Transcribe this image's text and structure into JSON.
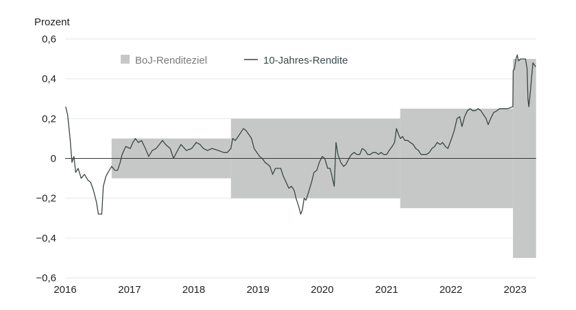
{
  "chart_data": {
    "type": "line",
    "ylabel": "Prozent",
    "ylim": [
      -0.6,
      0.6
    ],
    "yticks": [
      {
        "value": 0.6,
        "label": "0,6"
      },
      {
        "value": 0.4,
        "label": "0,4"
      },
      {
        "value": 0.2,
        "label": "0,2"
      },
      {
        "value": 0,
        "label": "0"
      },
      {
        "value": -0.2,
        "label": "−0,2"
      },
      {
        "value": -0.4,
        "label": "−0,4"
      },
      {
        "value": -0.6,
        "label": "−0,6"
      }
    ],
    "xlim": [
      "2016-01-01",
      "2023-05-01"
    ],
    "xticks": [
      {
        "value": "2016-01-01",
        "label": "2016"
      },
      {
        "value": "2017-01-01",
        "label": "2017"
      },
      {
        "value": "2018-01-01",
        "label": "2018"
      },
      {
        "value": "2019-01-01",
        "label": "2019"
      },
      {
        "value": "2020-01-01",
        "label": "2020"
      },
      {
        "value": "2021-01-01",
        "label": "2021"
      },
      {
        "value": "2022-01-01",
        "label": "2022"
      },
      {
        "value": "2023-01-01",
        "label": "2023"
      }
    ],
    "legend": {
      "position": "top-left",
      "band_label": "BoJ-Renditeziel",
      "line_label": "10-Jahres-Rendite"
    },
    "colors": {
      "band": "#c6c8c7",
      "line": "#37443f",
      "zero_line": "#333333",
      "grid": "#e6e6e6"
    },
    "band": [
      {
        "start": "2016-09-21",
        "end": "2018-07-31",
        "lower": -0.1,
        "upper": 0.1
      },
      {
        "start": "2018-07-31",
        "end": "2021-03-19",
        "lower": -0.2,
        "upper": 0.2
      },
      {
        "start": "2021-03-19",
        "end": "2022-12-20",
        "lower": -0.25,
        "upper": 0.25
      },
      {
        "start": "2022-12-20",
        "end": "2023-04-30",
        "lower": -0.5,
        "upper": 0.5
      }
    ],
    "series": [
      {
        "name": "10-Jahres-Rendite",
        "points": [
          [
            "2016-01-04",
            0.26
          ],
          [
            "2016-01-15",
            0.22
          ],
          [
            "2016-01-29",
            0.1
          ],
          [
            "2016-02-09",
            -0.02
          ],
          [
            "2016-02-20",
            0.01
          ],
          [
            "2016-03-01",
            -0.07
          ],
          [
            "2016-03-15",
            -0.05
          ],
          [
            "2016-04-01",
            -0.1
          ],
          [
            "2016-04-20",
            -0.08
          ],
          [
            "2016-05-10",
            -0.11
          ],
          [
            "2016-05-25",
            -0.12
          ],
          [
            "2016-06-10",
            -0.16
          ],
          [
            "2016-06-27",
            -0.22
          ],
          [
            "2016-07-08",
            -0.28
          ],
          [
            "2016-07-27",
            -0.28
          ],
          [
            "2016-08-05",
            -0.14
          ],
          [
            "2016-08-20",
            -0.09
          ],
          [
            "2016-09-01",
            -0.07
          ],
          [
            "2016-09-21",
            -0.04
          ],
          [
            "2016-10-10",
            -0.06
          ],
          [
            "2016-10-25",
            -0.06
          ],
          [
            "2016-11-09",
            -0.02
          ],
          [
            "2016-11-20",
            0.02
          ],
          [
            "2016-12-10",
            0.06
          ],
          [
            "2017-01-05",
            0.05
          ],
          [
            "2017-01-20",
            0.08
          ],
          [
            "2017-02-03",
            0.1
          ],
          [
            "2017-02-20",
            0.08
          ],
          [
            "2017-03-10",
            0.09
          ],
          [
            "2017-04-01",
            0.05
          ],
          [
            "2017-04-20",
            0.01
          ],
          [
            "2017-05-10",
            0.04
          ],
          [
            "2017-06-01",
            0.05
          ],
          [
            "2017-07-07",
            0.09
          ],
          [
            "2017-07-25",
            0.07
          ],
          [
            "2017-08-20",
            0.05
          ],
          [
            "2017-09-08",
            0.0
          ],
          [
            "2017-09-25",
            0.03
          ],
          [
            "2017-10-20",
            0.07
          ],
          [
            "2017-11-20",
            0.04
          ],
          [
            "2017-12-20",
            0.05
          ],
          [
            "2018-01-15",
            0.08
          ],
          [
            "2018-02-05",
            0.07
          ],
          [
            "2018-02-25",
            0.05
          ],
          [
            "2018-03-20",
            0.04
          ],
          [
            "2018-04-15",
            0.05
          ],
          [
            "2018-05-20",
            0.04
          ],
          [
            "2018-06-20",
            0.03
          ],
          [
            "2018-07-10",
            0.03
          ],
          [
            "2018-07-31",
            0.05
          ],
          [
            "2018-08-10",
            0.1
          ],
          [
            "2018-08-25",
            0.09
          ],
          [
            "2018-09-10",
            0.11
          ],
          [
            "2018-09-25",
            0.13
          ],
          [
            "2018-10-10",
            0.15
          ],
          [
            "2018-10-25",
            0.14
          ],
          [
            "2018-11-10",
            0.12
          ],
          [
            "2018-11-25",
            0.1
          ],
          [
            "2018-12-10",
            0.05
          ],
          [
            "2018-12-25",
            0.03
          ],
          [
            "2019-01-10",
            0.01
          ],
          [
            "2019-01-25",
            0.0
          ],
          [
            "2019-02-10",
            -0.02
          ],
          [
            "2019-02-25",
            -0.03
          ],
          [
            "2019-03-10",
            -0.04
          ],
          [
            "2019-03-25",
            -0.08
          ],
          [
            "2019-04-10",
            -0.05
          ],
          [
            "2019-04-25",
            -0.05
          ],
          [
            "2019-05-10",
            -0.05
          ],
          [
            "2019-05-25",
            -0.09
          ],
          [
            "2019-06-10",
            -0.12
          ],
          [
            "2019-06-25",
            -0.15
          ],
          [
            "2019-07-10",
            -0.14
          ],
          [
            "2019-07-25",
            -0.16
          ],
          [
            "2019-08-05",
            -0.2
          ],
          [
            "2019-08-20",
            -0.24
          ],
          [
            "2019-09-01",
            -0.28
          ],
          [
            "2019-09-10",
            -0.26
          ],
          [
            "2019-09-20",
            -0.2
          ],
          [
            "2019-10-01",
            -0.21
          ],
          [
            "2019-10-15",
            -0.17
          ],
          [
            "2019-11-01",
            -0.12
          ],
          [
            "2019-11-15",
            -0.07
          ],
          [
            "2019-12-01",
            -0.06
          ],
          [
            "2019-12-15",
            -0.02
          ],
          [
            "2020-01-01",
            0.01
          ],
          [
            "2020-01-15",
            0.0
          ],
          [
            "2020-02-01",
            -0.05
          ],
          [
            "2020-02-15",
            -0.05
          ],
          [
            "2020-03-09",
            -0.14
          ],
          [
            "2020-03-19",
            0.08
          ],
          [
            "2020-03-30",
            0.02
          ],
          [
            "2020-04-15",
            -0.02
          ],
          [
            "2020-05-01",
            -0.04
          ],
          [
            "2020-05-15",
            -0.03
          ],
          [
            "2020-06-01",
            0.0
          ],
          [
            "2020-06-15",
            0.02
          ],
          [
            "2020-07-01",
            0.03
          ],
          [
            "2020-07-15",
            0.02
          ],
          [
            "2020-08-01",
            0.02
          ],
          [
            "2020-08-15",
            0.05
          ],
          [
            "2020-09-01",
            0.04
          ],
          [
            "2020-09-15",
            0.02
          ],
          [
            "2020-10-01",
            0.02
          ],
          [
            "2020-10-15",
            0.03
          ],
          [
            "2020-11-01",
            0.03
          ],
          [
            "2020-11-15",
            0.02
          ],
          [
            "2020-12-01",
            0.03
          ],
          [
            "2020-12-15",
            0.02
          ],
          [
            "2021-01-01",
            0.02
          ],
          [
            "2021-01-15",
            0.04
          ],
          [
            "2021-02-01",
            0.06
          ],
          [
            "2021-02-15",
            0.08
          ],
          [
            "2021-02-26",
            0.15
          ],
          [
            "2021-03-10",
            0.12
          ],
          [
            "2021-03-20",
            0.1
          ],
          [
            "2021-04-01",
            0.11
          ],
          [
            "2021-04-15",
            0.09
          ],
          [
            "2021-05-01",
            0.09
          ],
          [
            "2021-05-15",
            0.08
          ],
          [
            "2021-06-01",
            0.07
          ],
          [
            "2021-06-15",
            0.05
          ],
          [
            "2021-07-01",
            0.04
          ],
          [
            "2021-07-15",
            0.02
          ],
          [
            "2021-08-01",
            0.02
          ],
          [
            "2021-08-15",
            0.02
          ],
          [
            "2021-09-01",
            0.03
          ],
          [
            "2021-09-15",
            0.05
          ],
          [
            "2021-10-01",
            0.06
          ],
          [
            "2021-10-15",
            0.08
          ],
          [
            "2021-11-01",
            0.07
          ],
          [
            "2021-11-15",
            0.08
          ],
          [
            "2021-12-01",
            0.06
          ],
          [
            "2021-12-15",
            0.05
          ],
          [
            "2022-01-05",
            0.1
          ],
          [
            "2022-01-20",
            0.14
          ],
          [
            "2022-02-05",
            0.2
          ],
          [
            "2022-02-20",
            0.21
          ],
          [
            "2022-03-05",
            0.16
          ],
          [
            "2022-03-20",
            0.21
          ],
          [
            "2022-04-05",
            0.24
          ],
          [
            "2022-04-20",
            0.25
          ],
          [
            "2022-05-05",
            0.24
          ],
          [
            "2022-05-20",
            0.24
          ],
          [
            "2022-06-05",
            0.25
          ],
          [
            "2022-06-20",
            0.24
          ],
          [
            "2022-07-05",
            0.22
          ],
          [
            "2022-07-20",
            0.2
          ],
          [
            "2022-08-01",
            0.17
          ],
          [
            "2022-08-15",
            0.2
          ],
          [
            "2022-09-01",
            0.23
          ],
          [
            "2022-09-20",
            0.24
          ],
          [
            "2022-10-05",
            0.25
          ],
          [
            "2022-10-20",
            0.25
          ],
          [
            "2022-11-05",
            0.25
          ],
          [
            "2022-11-20",
            0.25
          ],
          [
            "2022-12-19",
            0.26
          ],
          [
            "2022-12-21",
            0.44
          ],
          [
            "2022-12-28",
            0.45
          ],
          [
            "2023-01-06",
            0.5
          ],
          [
            "2023-01-13",
            0.52
          ],
          [
            "2023-01-20",
            0.49
          ],
          [
            "2023-02-01",
            0.5
          ],
          [
            "2023-02-15",
            0.5
          ],
          [
            "2023-03-01",
            0.5
          ],
          [
            "2023-03-10",
            0.45
          ],
          [
            "2023-03-15",
            0.3
          ],
          [
            "2023-03-20",
            0.26
          ],
          [
            "2023-03-28",
            0.33
          ],
          [
            "2023-04-05",
            0.41
          ],
          [
            "2023-04-12",
            0.48
          ],
          [
            "2023-04-20",
            0.47
          ],
          [
            "2023-04-28",
            0.46
          ]
        ]
      }
    ]
  }
}
